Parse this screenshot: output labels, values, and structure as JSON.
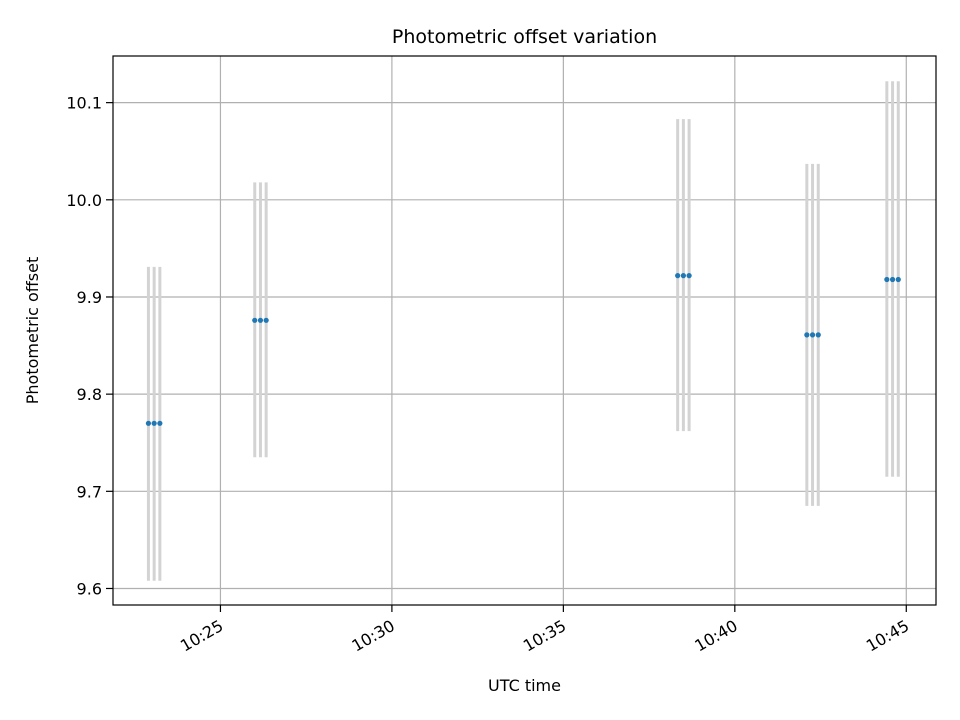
{
  "chart_data": {
    "type": "scatter",
    "title": "Photometric offset variation",
    "xlabel": "UTC time",
    "ylabel": "Photometric offset",
    "x_ticks": [
      "10:25",
      "10:30",
      "10:35",
      "10:40",
      "10:45"
    ],
    "y_ticks": [
      9.6,
      9.7,
      9.8,
      9.9,
      10.0,
      10.1
    ],
    "y_tick_labels": [
      "9.6",
      "9.7",
      "9.8",
      "9.9",
      "10.0",
      "10.1"
    ],
    "xlim": [
      "10:21:52",
      "10:45:52"
    ],
    "ylim": [
      9.583,
      10.148
    ],
    "grid": true,
    "marker_color": "#1f77b4",
    "errorbar_color": "#d3d3d3",
    "series": [
      {
        "points": [
          {
            "x": "10:22:54",
            "y": 9.77,
            "ylow": 9.608,
            "yhigh": 9.931
          },
          {
            "x": "10:23:04",
            "y": 9.77,
            "ylow": 9.608,
            "yhigh": 9.931
          },
          {
            "x": "10:23:14",
            "y": 9.77,
            "ylow": 9.608,
            "yhigh": 9.931
          },
          {
            "x": "10:26:00",
            "y": 9.876,
            "ylow": 9.735,
            "yhigh": 10.018
          },
          {
            "x": "10:26:10",
            "y": 9.876,
            "ylow": 9.735,
            "yhigh": 10.018
          },
          {
            "x": "10:26:20",
            "y": 9.876,
            "ylow": 9.735,
            "yhigh": 10.018
          },
          {
            "x": "10:38:20",
            "y": 9.922,
            "ylow": 9.762,
            "yhigh": 10.083
          },
          {
            "x": "10:38:30",
            "y": 9.922,
            "ylow": 9.762,
            "yhigh": 10.083
          },
          {
            "x": "10:38:40",
            "y": 9.922,
            "ylow": 9.762,
            "yhigh": 10.083
          },
          {
            "x": "10:42:06",
            "y": 9.861,
            "ylow": 9.685,
            "yhigh": 10.037
          },
          {
            "x": "10:42:16",
            "y": 9.861,
            "ylow": 9.685,
            "yhigh": 10.037
          },
          {
            "x": "10:42:26",
            "y": 9.861,
            "ylow": 9.685,
            "yhigh": 10.037
          },
          {
            "x": "10:44:26",
            "y": 9.918,
            "ylow": 9.715,
            "yhigh": 10.122
          },
          {
            "x": "10:44:36",
            "y": 9.918,
            "ylow": 9.715,
            "yhigh": 10.122
          },
          {
            "x": "10:44:46",
            "y": 9.918,
            "ylow": 9.715,
            "yhigh": 10.122
          }
        ]
      }
    ]
  }
}
